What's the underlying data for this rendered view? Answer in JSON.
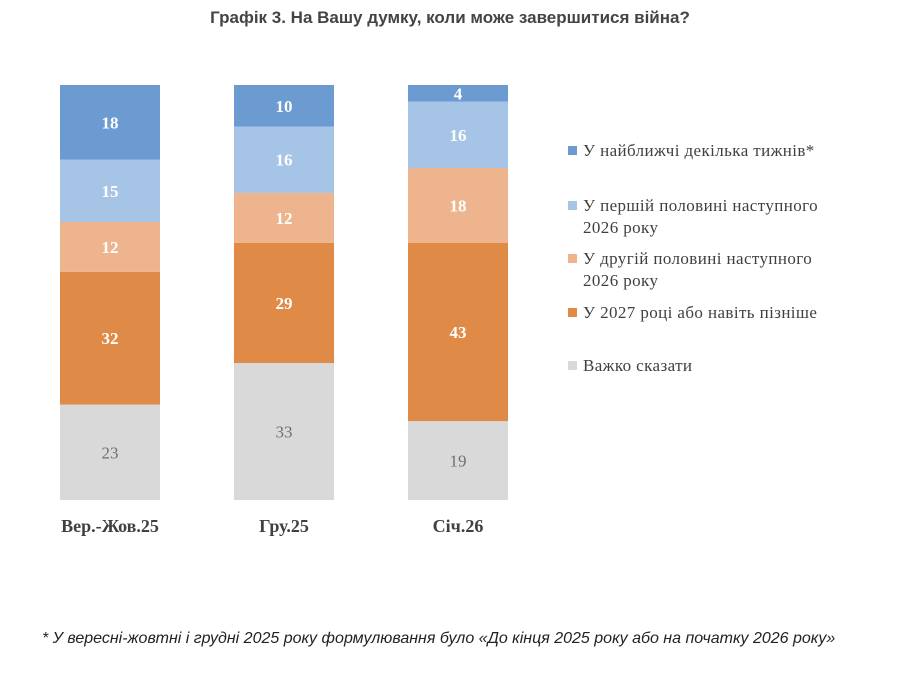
{
  "title": "Графік 3. На Вашу думку, коли може завершитися війна?",
  "footnote": "* У вересні-жовтні і грудні 2025 року формулювання було «До кінця 2025 року або на початку 2026 року»",
  "colors": {
    "weeks": "#6c9bd2",
    "first_half": "#a6c4e6",
    "second_half": "#eeb48d",
    "later": "#e08a48",
    "hard": "#d9d9d9"
  },
  "chart_data": {
    "type": "bar",
    "stacked": true,
    "orientation": "vertical",
    "categories": [
      "Вер.-Жов.25",
      "Гру.25",
      "Січ.26"
    ],
    "series": [
      {
        "name": "Важко сказати",
        "color": "#d9d9d9",
        "label_color": "#707070",
        "label_bold": false,
        "values": [
          23,
          33,
          19
        ]
      },
      {
        "name": "У 2027 році або навіть пізніше",
        "color": "#e08a48",
        "label_color": "#ffffff",
        "label_bold": true,
        "values": [
          32,
          29,
          43
        ]
      },
      {
        "name": "У другій половині наступного 2026 року",
        "color": "#eeb48d",
        "label_color": "#ffffff",
        "label_bold": true,
        "values": [
          12,
          12,
          18
        ]
      },
      {
        "name": "У першій половині наступного 2026 року",
        "color": "#a6c4e6",
        "label_color": "#ffffff",
        "label_bold": true,
        "values": [
          15,
          16,
          16
        ]
      },
      {
        "name": "У найближчі декілька тижнів*",
        "color": "#6c9bd2",
        "label_color": "#ffffff",
        "label_bold": true,
        "values": [
          18,
          10,
          4
        ]
      }
    ],
    "legend_order": [
      "У найближчі декілька тижнів*",
      "У першій половині наступного 2026 року",
      "У другій половині наступного 2026 року",
      "У 2027 році або навіть пізніше",
      "Важко сказати"
    ],
    "legend_position": "right",
    "grid": false,
    "axis_lines": false
  }
}
